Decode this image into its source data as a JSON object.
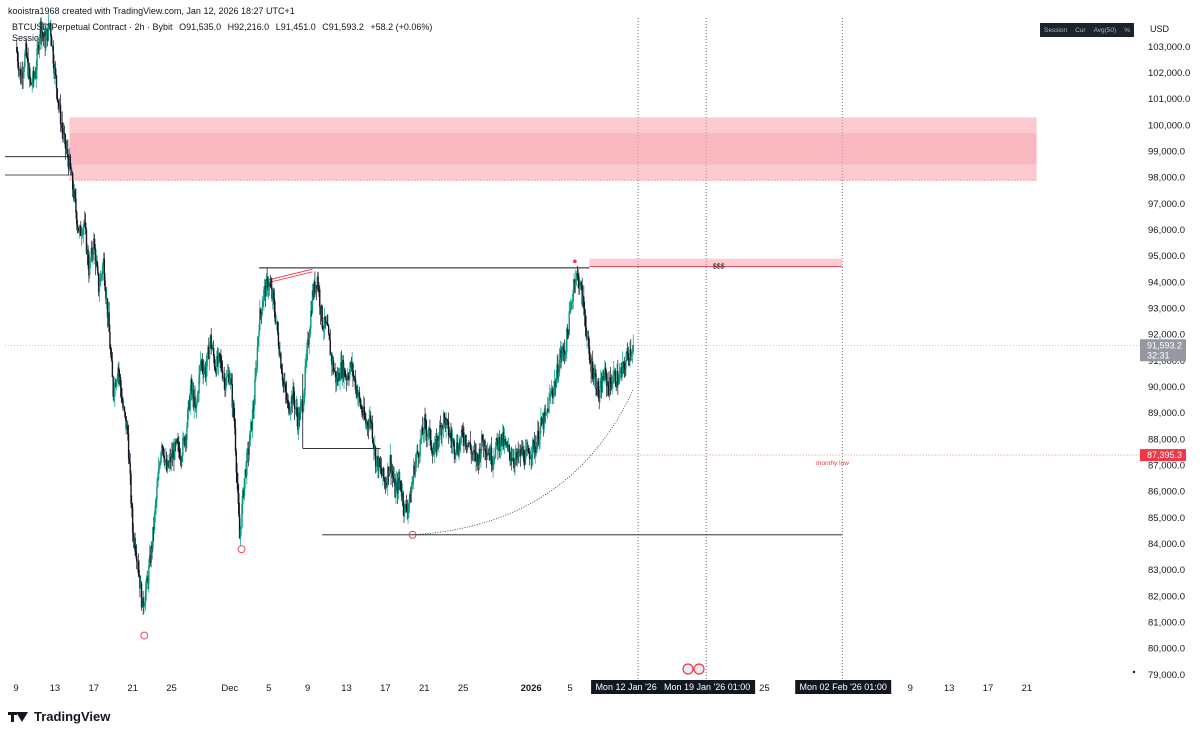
{
  "header": {
    "credit": "kooistra1968 created with TradingView.com, Jan 12, 2026 18:27 UTC+1",
    "symbol": "BTCUSD Perpetual Contract · 2h · Bybit",
    "o_label": "O",
    "o_value": "91,535.0",
    "h_label": "H",
    "h_value": "92,216.0",
    "l_label": "L",
    "l_value": "91,451.0",
    "c_label": "C",
    "c_value": "91,593.2",
    "change": "+58.2 (+0.06%)",
    "indicator": "Sessions"
  },
  "session_widget": {
    "items": [
      "Session",
      "Cur",
      "Avg(50)",
      "%"
    ]
  },
  "currency": "USD",
  "brand": "TradingView",
  "colors": {
    "up": "#089981",
    "down": "#131722",
    "zone": "#f7a1ab",
    "red": "#f23645",
    "badge": "#9598a1"
  },
  "chart_data": {
    "type": "candlestick",
    "ylim": [
      78800,
      104100
    ],
    "y_ticks": [
      79000,
      80000,
      81000,
      82000,
      83000,
      84000,
      85000,
      86000,
      87000,
      88000,
      89000,
      90000,
      91000,
      92000,
      93000,
      94000,
      95000,
      96000,
      97000,
      98000,
      99000,
      100000,
      101000,
      102000,
      103000
    ],
    "y_tick_labels": [
      "79,000.0",
      "80,000.0",
      "81,000.0",
      "82,000.0",
      "83,000.0",
      "84,000.0",
      "85,000.0",
      "86,000.0",
      "87,000.0",
      "88,000.0",
      "89,000.0",
      "90,000.0",
      "91,000.0",
      "92,000.0",
      "93,000.0",
      "94,000.0",
      "95,000.0",
      "96,000.0",
      "97,000.0",
      "98,000.0",
      "99,000.0",
      "100,000.0",
      "101,000.0",
      "102,000.0",
      "103,000.0"
    ],
    "x_labels": [
      {
        "label": "9",
        "day": 0
      },
      {
        "label": "13",
        "day": 4
      },
      {
        "label": "17",
        "day": 8
      },
      {
        "label": "21",
        "day": 12
      },
      {
        "label": "25",
        "day": 16
      },
      {
        "label": "Dec",
        "day": 22
      },
      {
        "label": "5",
        "day": 26
      },
      {
        "label": "9",
        "day": 30
      },
      {
        "label": "13",
        "day": 34
      },
      {
        "label": "17",
        "day": 38
      },
      {
        "label": "21",
        "day": 42
      },
      {
        "label": "25",
        "day": 46
      },
      {
        "label": "2026",
        "day": 53,
        "bold": true
      },
      {
        "label": "5",
        "day": 57
      },
      {
        "label": "25",
        "day": 77
      },
      {
        "label": "9",
        "day": 92
      },
      {
        "label": "13",
        "day": 96
      },
      {
        "label": "17",
        "day": 100
      },
      {
        "label": "21",
        "day": 104
      }
    ],
    "last_price": "91,593.2",
    "countdown": "32:31",
    "last_value": 91593.2,
    "monthly_low_price": "87,395.3",
    "monthly_low_value": 87395.3,
    "monthly_low_text": "monthy low",
    "liquidity_text": "$$$",
    "time_markers": [
      {
        "label": "Mon 12 Jan '26",
        "day": 64
      },
      {
        "label": "Mon 19 Jan '26   01:00",
        "day": 71
      },
      {
        "label": "Mon 02 Feb '26   01:00",
        "day": 85
      }
    ],
    "zones": [
      {
        "from_day": 5.5,
        "to_day": 105,
        "low": 97900,
        "high": 100300
      },
      {
        "from_day": 59,
        "to_day": 85,
        "low": 94600,
        "high": 94900
      }
    ],
    "key_levels": [
      {
        "name": "range-high",
        "value": 94550,
        "from_day": 25,
        "to_day": 59
      },
      {
        "name": "range-low",
        "value": 84350,
        "from_day": 31.5,
        "to_day": 85
      },
      {
        "name": "mid-range",
        "value": 87650,
        "from_day": 29.5,
        "to_day": 37.5
      }
    ],
    "swing_lows": [
      {
        "day": 13.2,
        "value": 80500
      },
      {
        "day": 23.2,
        "value": 83800
      },
      {
        "day": 40.8,
        "value": 84350
      }
    ],
    "path": [
      [
        0,
        103000
      ],
      [
        0.5,
        101800
      ],
      [
        1,
        102800
      ],
      [
        1.5,
        101500
      ],
      [
        2,
        102000
      ],
      [
        2.5,
        103800
      ],
      [
        3,
        103200
      ],
      [
        3.5,
        103900
      ],
      [
        4,
        102000
      ],
      [
        4.5,
        100500
      ],
      [
        5,
        99300
      ],
      [
        5.5,
        98500
      ],
      [
        6,
        97200
      ],
      [
        6.5,
        95800
      ],
      [
        7,
        96300
      ],
      [
        7.5,
        94500
      ],
      [
        8,
        95500
      ],
      [
        8.5,
        93800
      ],
      [
        9,
        94800
      ],
      [
        9.5,
        92500
      ],
      [
        10,
        89800
      ],
      [
        10.5,
        90800
      ],
      [
        11,
        89200
      ],
      [
        11.5,
        88200
      ],
      [
        12,
        84500
      ],
      [
        12.5,
        83500
      ],
      [
        13,
        81600
      ],
      [
        13.5,
        82500
      ],
      [
        14,
        84000
      ],
      [
        14.5,
        86000
      ],
      [
        15,
        88000
      ],
      [
        15.5,
        86800
      ],
      [
        16,
        87300
      ],
      [
        16.5,
        87700
      ],
      [
        17,
        87500
      ],
      [
        17.5,
        88300
      ],
      [
        18,
        90000
      ],
      [
        18.5,
        89000
      ],
      [
        19,
        91000
      ],
      [
        19.5,
        90600
      ],
      [
        20,
        91800
      ],
      [
        20.5,
        90800
      ],
      [
        21,
        91000
      ],
      [
        21.5,
        90200
      ],
      [
        22,
        90500
      ],
      [
        22.5,
        88500
      ],
      [
        23,
        84200
      ],
      [
        23.5,
        86500
      ],
      [
        24,
        87800
      ],
      [
        24.5,
        89500
      ],
      [
        25,
        92500
      ],
      [
        25.5,
        93600
      ],
      [
        26,
        94000
      ],
      [
        26.5,
        93200
      ],
      [
        27,
        91800
      ],
      [
        27.5,
        90200
      ],
      [
        28,
        89200
      ],
      [
        28.5,
        89700
      ],
      [
        29,
        88700
      ],
      [
        29.5,
        89400
      ],
      [
        30,
        91500
      ],
      [
        30.5,
        93500
      ],
      [
        31,
        94200
      ],
      [
        31.5,
        92500
      ],
      [
        32,
        92200
      ],
      [
        32.5,
        91000
      ],
      [
        33,
        90200
      ],
      [
        33.5,
        90800
      ],
      [
        34,
        90400
      ],
      [
        34.5,
        90800
      ],
      [
        35,
        90000
      ],
      [
        35.5,
        89200
      ],
      [
        36,
        88600
      ],
      [
        36.5,
        88800
      ],
      [
        37,
        87300
      ],
      [
        37.5,
        86800
      ],
      [
        38,
        86300
      ],
      [
        38.5,
        87200
      ],
      [
        39,
        86000
      ],
      [
        39.5,
        86400
      ],
      [
        40,
        85300
      ],
      [
        40.5,
        85600
      ],
      [
        41,
        87000
      ],
      [
        41.5,
        87700
      ],
      [
        42,
        88500
      ],
      [
        42.5,
        88200
      ],
      [
        43,
        87400
      ],
      [
        43.5,
        88200
      ],
      [
        44,
        88800
      ],
      [
        44.5,
        88300
      ],
      [
        45,
        87800
      ],
      [
        45.5,
        87700
      ],
      [
        46,
        88200
      ],
      [
        46.5,
        87900
      ],
      [
        47,
        87400
      ],
      [
        47.5,
        87200
      ],
      [
        48,
        88000
      ],
      [
        48.5,
        87600
      ],
      [
        49,
        87300
      ],
      [
        49.5,
        87800
      ],
      [
        50,
        88000
      ],
      [
        50.5,
        87600
      ],
      [
        51,
        87400
      ],
      [
        51.5,
        87200
      ],
      [
        52,
        87500
      ],
      [
        52.5,
        87300
      ],
      [
        53,
        87600
      ],
      [
        53.5,
        87800
      ],
      [
        54,
        88500
      ],
      [
        54.5,
        88800
      ],
      [
        55,
        89700
      ],
      [
        55.5,
        90200
      ],
      [
        56,
        91200
      ],
      [
        56.5,
        91400
      ],
      [
        57,
        92800
      ],
      [
        57.5,
        94300
      ],
      [
        58,
        94000
      ],
      [
        58.5,
        92800
      ],
      [
        59,
        91000
      ],
      [
        59.5,
        90500
      ],
      [
        60,
        89600
      ],
      [
        60.5,
        90500
      ],
      [
        61,
        90000
      ],
      [
        61.5,
        90400
      ],
      [
        62,
        90300
      ],
      [
        62.5,
        90700
      ],
      [
        63,
        91300
      ],
      [
        63.5,
        91593
      ]
    ]
  }
}
